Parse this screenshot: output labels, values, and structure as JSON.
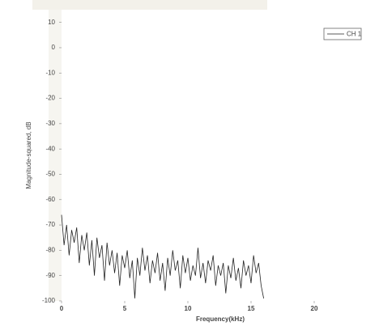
{
  "chart_data": {
    "type": "line",
    "xlabel": "Frequency(kHz)",
    "ylabel": "Magnitude-squared, dB",
    "xlim": [
      0,
      25
    ],
    "ylim": [
      -100,
      15
    ],
    "xticks": [
      0,
      5,
      10,
      15,
      20
    ],
    "yticks": [
      10,
      0,
      -10,
      -20,
      -30,
      -40,
      -50,
      -60,
      -70,
      -80,
      -90,
      -100
    ],
    "legend": "top-right",
    "x": [
      0,
      0.2,
      0.4,
      0.6,
      0.8,
      1,
      1.2,
      1.4,
      1.6,
      1.8,
      2,
      2.2,
      2.4,
      2.6,
      2.8,
      3,
      3.2,
      3.4,
      3.6,
      3.8,
      4,
      4.2,
      4.4,
      4.6,
      4.8,
      5,
      5.2,
      5.4,
      5.6,
      5.8,
      6,
      6.2,
      6.4,
      6.6,
      6.8,
      7,
      7.2,
      7.4,
      7.6,
      7.8,
      8,
      8.2,
      8.4,
      8.6,
      8.8,
      9,
      9.2,
      9.4,
      9.6,
      9.8,
      10,
      10.2,
      10.4,
      10.6,
      10.8,
      11,
      11.2,
      11.4,
      11.6,
      11.8,
      12,
      12.2,
      12.4,
      12.6,
      12.8,
      13,
      13.2,
      13.4,
      13.6,
      13.8,
      14,
      14.2,
      14.4,
      14.6,
      14.8,
      15,
      15.2,
      15.4,
      15.6,
      15.8,
      16
    ],
    "series": [
      {
        "name": "CH 1",
        "color": "#222222",
        "values": [
          -66,
          -78,
          -70,
          -82,
          -72,
          -77,
          -71,
          -85,
          -74,
          -80,
          -73,
          -86,
          -76,
          -90,
          -75,
          -83,
          -78,
          -92,
          -77,
          -86,
          -80,
          -89,
          -81,
          -94,
          -82,
          -87,
          -80,
          -91,
          -84,
          -99,
          -83,
          -90,
          -79,
          -88,
          -82,
          -93,
          -84,
          -89,
          -81,
          -92,
          -85,
          -96,
          -83,
          -90,
          -80,
          -88,
          -84,
          -95,
          -82,
          -89,
          -83,
          -92,
          -86,
          -90,
          -79,
          -91,
          -85,
          -93,
          -84,
          -88,
          -82,
          -94,
          -86,
          -90,
          -85,
          -97,
          -86,
          -91,
          -83,
          -92,
          -87,
          -95,
          -84,
          -90,
          -86,
          -93,
          -82,
          -89,
          -85,
          -94,
          -99
        ]
      }
    ]
  }
}
